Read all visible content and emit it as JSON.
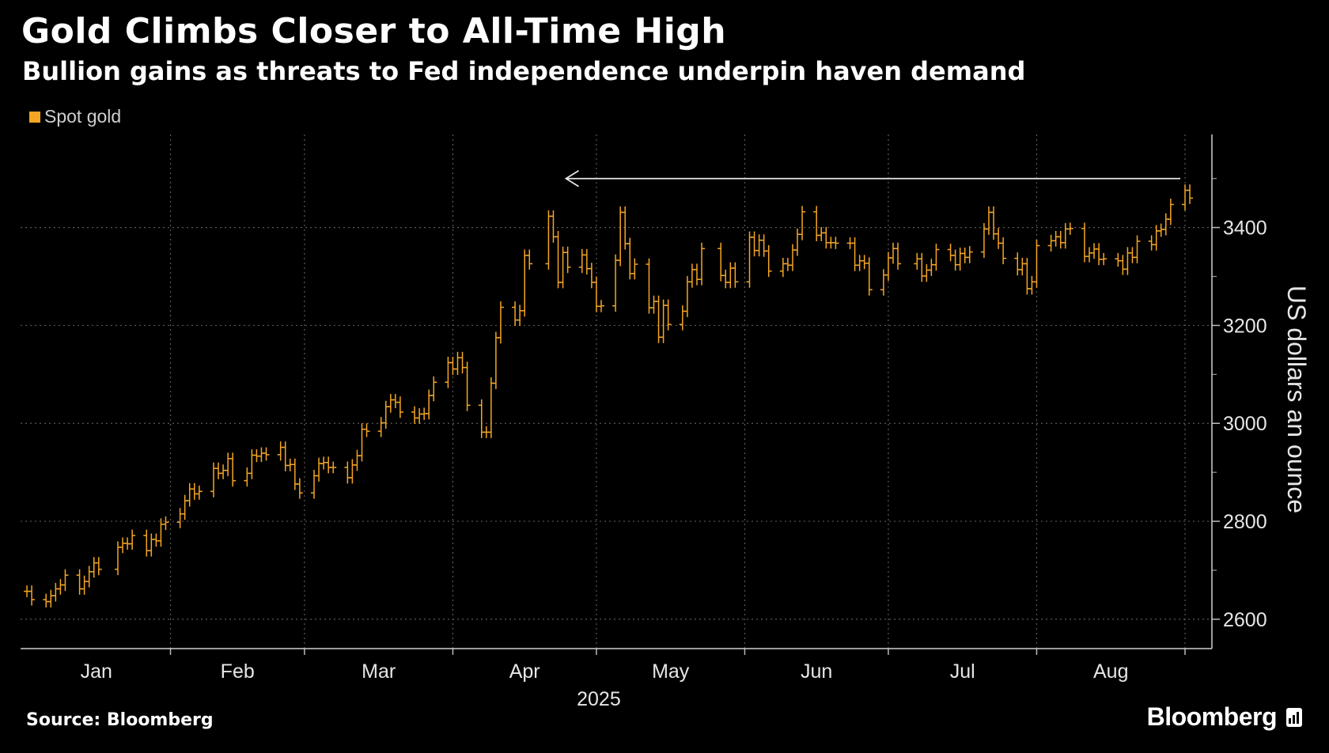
{
  "title": "Gold Climbs Closer to All-Time High",
  "subtitle": "Bullion gains as threats to Fed independence underpin haven demand",
  "source": "Source: Bloomberg",
  "brand": "Bloomberg",
  "colors": {
    "series": "#f5a623",
    "background": "#000000",
    "grid": "#555555",
    "text": "#ffffff"
  },
  "chart_data": {
    "type": "line",
    "style": "ohlc",
    "title": "Gold Climbs Closer to All-Time High",
    "subtitle": "Bullion gains as threats to Fed independence underpin haven demand",
    "xlabel": "2025",
    "ylabel": "US dollars an ounce",
    "x_ticks": [
      "Jan",
      "Feb",
      "Mar",
      "Apr",
      "May",
      "Jun",
      "Jul",
      "Aug"
    ],
    "y_ticks": [
      2600,
      2800,
      3000,
      3200,
      3400
    ],
    "ylim": [
      2540,
      3590
    ],
    "y_axis_side": "right",
    "grid": true,
    "legend": "top-left",
    "annotation": {
      "type": "arrow",
      "from_date": "2025-09-02",
      "to_date": "2025-04-22",
      "value": 3500
    },
    "series": [
      {
        "name": "Spot gold",
        "color": "#f5a623",
        "points": [
          [
            "2025-01-02",
            2657
          ],
          [
            "2025-01-03",
            2640
          ],
          [
            "2025-01-06",
            2636
          ],
          [
            "2025-01-07",
            2648
          ],
          [
            "2025-01-08",
            2662
          ],
          [
            "2025-01-09",
            2670
          ],
          [
            "2025-01-10",
            2690
          ],
          [
            "2025-01-13",
            2662
          ],
          [
            "2025-01-14",
            2677
          ],
          [
            "2025-01-15",
            2697
          ],
          [
            "2025-01-16",
            2715
          ],
          [
            "2025-01-17",
            2702
          ],
          [
            "2025-01-21",
            2747
          ],
          [
            "2025-01-22",
            2755
          ],
          [
            "2025-01-23",
            2754
          ],
          [
            "2025-01-24",
            2771
          ],
          [
            "2025-01-27",
            2740
          ],
          [
            "2025-01-28",
            2763
          ],
          [
            "2025-01-29",
            2760
          ],
          [
            "2025-01-30",
            2794
          ],
          [
            "2025-01-31",
            2798
          ],
          [
            "2025-02-03",
            2815
          ],
          [
            "2025-02-04",
            2842
          ],
          [
            "2025-02-05",
            2866
          ],
          [
            "2025-02-06",
            2856
          ],
          [
            "2025-02-07",
            2861
          ],
          [
            "2025-02-10",
            2908
          ],
          [
            "2025-02-11",
            2898
          ],
          [
            "2025-02-12",
            2904
          ],
          [
            "2025-02-13",
            2928
          ],
          [
            "2025-02-14",
            2883
          ],
          [
            "2025-02-17",
            2898
          ],
          [
            "2025-02-18",
            2935
          ],
          [
            "2025-02-19",
            2933
          ],
          [
            "2025-02-20",
            2939
          ],
          [
            "2025-02-21",
            2936
          ],
          [
            "2025-02-24",
            2951
          ],
          [
            "2025-02-25",
            2914
          ],
          [
            "2025-02-26",
            2916
          ],
          [
            "2025-02-27",
            2876
          ],
          [
            "2025-02-28",
            2858
          ],
          [
            "2025-03-03",
            2893
          ],
          [
            "2025-03-04",
            2918
          ],
          [
            "2025-03-05",
            2920
          ],
          [
            "2025-03-06",
            2910
          ],
          [
            "2025-03-07",
            2910
          ],
          [
            "2025-03-10",
            2889
          ],
          [
            "2025-03-11",
            2915
          ],
          [
            "2025-03-12",
            2934
          ],
          [
            "2025-03-13",
            2988
          ],
          [
            "2025-03-14",
            2984
          ],
          [
            "2025-03-17",
            3001
          ],
          [
            "2025-03-18",
            3034
          ],
          [
            "2025-03-19",
            3048
          ],
          [
            "2025-03-20",
            3043
          ],
          [
            "2025-03-21",
            3023
          ],
          [
            "2025-03-24",
            3011
          ],
          [
            "2025-03-25",
            3019
          ],
          [
            "2025-03-26",
            3020
          ],
          [
            "2025-03-27",
            3057
          ],
          [
            "2025-03-28",
            3084
          ],
          [
            "2025-03-31",
            3124
          ],
          [
            "2025-04-01",
            3111
          ],
          [
            "2025-04-02",
            3134
          ],
          [
            "2025-04-03",
            3114
          ],
          [
            "2025-04-04",
            3037
          ],
          [
            "2025-04-07",
            2982
          ],
          [
            "2025-04-08",
            2982
          ],
          [
            "2025-04-09",
            3082
          ],
          [
            "2025-04-10",
            3175
          ],
          [
            "2025-04-11",
            3237
          ],
          [
            "2025-04-14",
            3211
          ],
          [
            "2025-04-15",
            3230
          ],
          [
            "2025-04-16",
            3343
          ],
          [
            "2025-04-17",
            3326
          ],
          [
            "2025-04-21",
            3423
          ],
          [
            "2025-04-22",
            3381
          ],
          [
            "2025-04-23",
            3288
          ],
          [
            "2025-04-24",
            3349
          ],
          [
            "2025-04-25",
            3319
          ],
          [
            "2025-04-28",
            3344
          ],
          [
            "2025-04-29",
            3316
          ],
          [
            "2025-04-30",
            3288
          ],
          [
            "2025-05-01",
            3239
          ],
          [
            "2025-05-02",
            3240
          ],
          [
            "2025-05-05",
            3333
          ],
          [
            "2025-05-06",
            3431
          ],
          [
            "2025-05-07",
            3367
          ],
          [
            "2025-05-08",
            3306
          ],
          [
            "2025-05-09",
            3325
          ],
          [
            "2025-05-12",
            3236
          ],
          [
            "2025-05-13",
            3249
          ],
          [
            "2025-05-14",
            3176
          ],
          [
            "2025-05-15",
            3241
          ],
          [
            "2025-05-16",
            3202
          ],
          [
            "2025-05-19",
            3229
          ],
          [
            "2025-05-20",
            3289
          ],
          [
            "2025-05-21",
            3314
          ],
          [
            "2025-05-22",
            3294
          ],
          [
            "2025-05-23",
            3357
          ],
          [
            "2025-05-27",
            3302
          ],
          [
            "2025-05-28",
            3288
          ],
          [
            "2025-05-29",
            3317
          ],
          [
            "2025-05-30",
            3289
          ],
          [
            "2025-06-02",
            3380
          ],
          [
            "2025-06-03",
            3353
          ],
          [
            "2025-06-04",
            3374
          ],
          [
            "2025-06-05",
            3352
          ],
          [
            "2025-06-06",
            3311
          ],
          [
            "2025-06-09",
            3326
          ],
          [
            "2025-06-10",
            3323
          ],
          [
            "2025-06-11",
            3354
          ],
          [
            "2025-06-12",
            3386
          ],
          [
            "2025-06-13",
            3432
          ],
          [
            "2025-06-16",
            3384
          ],
          [
            "2025-06-17",
            3389
          ],
          [
            "2025-06-18",
            3369
          ],
          [
            "2025-06-19",
            3369
          ],
          [
            "2025-06-20",
            3368
          ],
          [
            "2025-06-23",
            3368
          ],
          [
            "2025-06-24",
            3323
          ],
          [
            "2025-06-25",
            3332
          ],
          [
            "2025-06-26",
            3327
          ],
          [
            "2025-06-27",
            3273
          ],
          [
            "2025-06-30",
            3303
          ],
          [
            "2025-07-01",
            3338
          ],
          [
            "2025-07-02",
            3357
          ],
          [
            "2025-07-03",
            3326
          ],
          [
            "2025-07-07",
            3336
          ],
          [
            "2025-07-08",
            3301
          ],
          [
            "2025-07-09",
            3313
          ],
          [
            "2025-07-10",
            3324
          ],
          [
            "2025-07-11",
            3355
          ],
          [
            "2025-07-14",
            3343
          ],
          [
            "2025-07-15",
            3324
          ],
          [
            "2025-07-16",
            3347
          ],
          [
            "2025-07-17",
            3339
          ],
          [
            "2025-07-18",
            3350
          ],
          [
            "2025-07-21",
            3397
          ],
          [
            "2025-07-22",
            3431
          ],
          [
            "2025-07-23",
            3387
          ],
          [
            "2025-07-24",
            3368
          ],
          [
            "2025-07-25",
            3337
          ],
          [
            "2025-07-28",
            3314
          ],
          [
            "2025-07-29",
            3326
          ],
          [
            "2025-07-30",
            3275
          ],
          [
            "2025-07-31",
            3289
          ],
          [
            "2025-08-01",
            3363
          ],
          [
            "2025-08-04",
            3373
          ],
          [
            "2025-08-05",
            3381
          ],
          [
            "2025-08-06",
            3369
          ],
          [
            "2025-08-07",
            3397
          ],
          [
            "2025-08-08",
            3398
          ],
          [
            "2025-08-11",
            3341
          ],
          [
            "2025-08-12",
            3348
          ],
          [
            "2025-08-13",
            3356
          ],
          [
            "2025-08-14",
            3335
          ],
          [
            "2025-08-15",
            3336
          ],
          [
            "2025-08-18",
            3332
          ],
          [
            "2025-08-19",
            3315
          ],
          [
            "2025-08-20",
            3348
          ],
          [
            "2025-08-21",
            3339
          ],
          [
            "2025-08-22",
            3372
          ],
          [
            "2025-08-25",
            3365
          ],
          [
            "2025-08-26",
            3393
          ],
          [
            "2025-08-27",
            3396
          ],
          [
            "2025-08-28",
            3417
          ],
          [
            "2025-08-29",
            3447
          ],
          [
            "2025-09-01",
            3476
          ],
          [
            "2025-09-02",
            3460
          ]
        ]
      }
    ]
  }
}
